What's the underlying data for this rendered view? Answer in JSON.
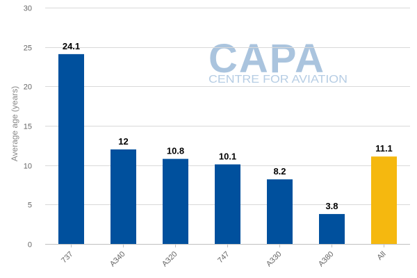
{
  "watermark": {
    "name": "CAPA",
    "tagline": "CENTRE FOR AVIATION"
  },
  "chart_data": {
    "type": "bar",
    "title": "",
    "xlabel": "",
    "ylabel": "Average age (years)",
    "ylim": [
      0,
      30
    ],
    "yticks": [
      0,
      5,
      10,
      15,
      20,
      25,
      30
    ],
    "grid": true,
    "categories": [
      "737",
      "A340",
      "A320",
      "747",
      "A330",
      "A380",
      "All"
    ],
    "values": [
      24.1,
      12,
      10.8,
      10.1,
      8.2,
      3.8,
      11.1
    ],
    "value_labels": [
      "24.1",
      "12",
      "10.8",
      "10.1",
      "8.2",
      "3.8",
      "11.1"
    ],
    "colors": [
      "#00509d",
      "#00509d",
      "#00509d",
      "#00509d",
      "#00509d",
      "#00509d",
      "#f5b80f"
    ]
  }
}
